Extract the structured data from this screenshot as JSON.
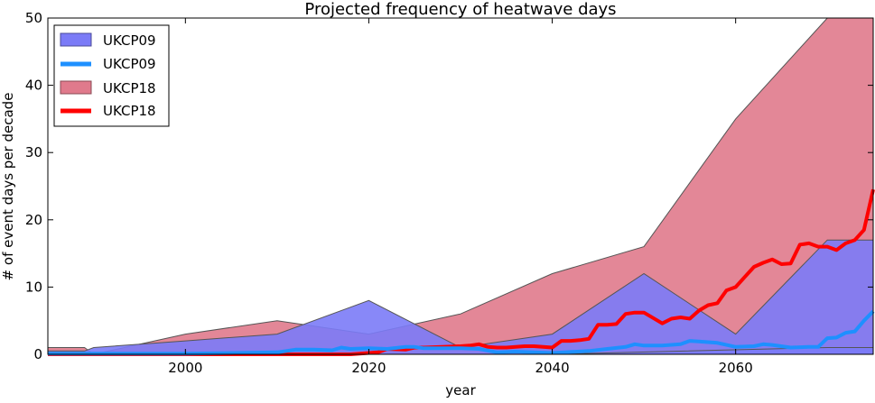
{
  "chart_data": {
    "type": "area",
    "title": "Projected frequency of heatwave days",
    "xlabel": "year",
    "ylabel": "# of event days per decade",
    "xlim": [
      1985,
      2075
    ],
    "ylim": [
      0,
      50
    ],
    "xticks": [
      2000,
      2020,
      2040,
      2060
    ],
    "yticks": [
      0,
      10,
      20,
      30,
      40,
      50
    ],
    "grid": false,
    "legend_position": "top-left",
    "legend": [
      "UKCP09",
      "UKCP09",
      "UKCP18",
      "UKCP18"
    ],
    "series": [
      {
        "name": "UKCP18",
        "kind": "range",
        "color": "#e07a8c",
        "x": [
          1985,
          1989,
          1990,
          2000,
          2010,
          2020,
          2030,
          2040,
          2050,
          2060,
          2070,
          2075
        ],
        "lower": [
          0,
          0,
          0,
          0,
          0,
          0,
          0,
          0,
          0,
          0,
          0,
          0
        ],
        "upper": [
          1,
          1,
          0,
          3,
          5,
          3,
          6,
          12,
          16,
          35,
          51,
          51
        ]
      },
      {
        "name": "UKCP09",
        "kind": "range",
        "color": "#7b7bf7",
        "x": [
          1985,
          1989,
          1990,
          2000,
          2010,
          2020,
          2030,
          2040,
          2050,
          2060,
          2070,
          2075
        ],
        "lower": [
          0,
          0,
          0,
          0,
          0,
          0,
          0,
          0,
          0,
          0,
          0,
          0
        ],
        "upper": [
          0.5,
          0.5,
          1,
          2,
          3,
          8,
          1,
          3,
          12,
          3,
          17,
          17
        ]
      },
      {
        "name": "UKCP09",
        "kind": "range",
        "color": "#7b7bf7",
        "x": [
          1985,
          2040,
          2070,
          2075
        ],
        "lower": [
          0,
          0,
          0,
          0
        ],
        "upper": [
          0,
          0,
          1,
          1
        ]
      },
      {
        "name": "UKCP18",
        "kind": "line",
        "color": "#ff0000",
        "x": [
          1985,
          2000,
          2010,
          2018,
          2021,
          2022,
          2024,
          2025,
          2026,
          2028,
          2030,
          2031,
          2032,
          2033,
          2034,
          2035,
          2036,
          2037,
          2038,
          2039,
          2040,
          2041,
          2042,
          2043,
          2044,
          2045,
          2046,
          2047,
          2048,
          2049,
          2050,
          2051,
          2052,
          2053,
          2054,
          2055,
          2056,
          2057,
          2058,
          2059,
          2060,
          2061,
          2062,
          2063,
          2064,
          2065,
          2066,
          2067,
          2068,
          2069,
          2070,
          2071,
          2072,
          2073,
          2074,
          2075
        ],
        "y": [
          0,
          0,
          0,
          0,
          0.3,
          0.8,
          0.7,
          1,
          1,
          1.1,
          1.2,
          1.3,
          1.5,
          1.1,
          1,
          1,
          1.1,
          1.2,
          1.2,
          1.1,
          1,
          2,
          2,
          2.1,
          2.3,
          4.4,
          4.4,
          4.5,
          6,
          6.2,
          6.2,
          5.4,
          4.6,
          5.3,
          5.5,
          5.3,
          6.5,
          7.3,
          7.6,
          9.5,
          10,
          11.5,
          13,
          13.6,
          14.1,
          13.4,
          13.5,
          16.3,
          16.5,
          16,
          16,
          15.5,
          16.5,
          17,
          18.5,
          24.5
        ]
      },
      {
        "name": "UKCP09",
        "kind": "line",
        "color": "#1e90ff",
        "x": [
          1985,
          2000,
          2010,
          2012,
          2014,
          2016,
          2017,
          2018,
          2020,
          2022,
          2024,
          2025,
          2026,
          2028,
          2030,
          2032,
          2034,
          2036,
          2040,
          2044,
          2046,
          2048,
          2049,
          2050,
          2052,
          2054,
          2055,
          2056,
          2058,
          2060,
          2062,
          2063,
          2064,
          2066,
          2068,
          2069,
          2070,
          2071,
          2072,
          2073,
          2074,
          2075
        ],
        "y": [
          0.1,
          0.1,
          0.3,
          0.7,
          0.7,
          0.6,
          1,
          0.8,
          0.9,
          0.8,
          1.1,
          1.1,
          0.9,
          0.9,
          0.9,
          0.8,
          0.3,
          0.4,
          0.2,
          0.5,
          0.8,
          1.1,
          1.5,
          1.3,
          1.3,
          1.5,
          2,
          1.9,
          1.7,
          1.1,
          1.2,
          1.5,
          1.4,
          1,
          1.1,
          1.1,
          2.4,
          2.5,
          3.2,
          3.4,
          5,
          6.4
        ]
      }
    ]
  }
}
